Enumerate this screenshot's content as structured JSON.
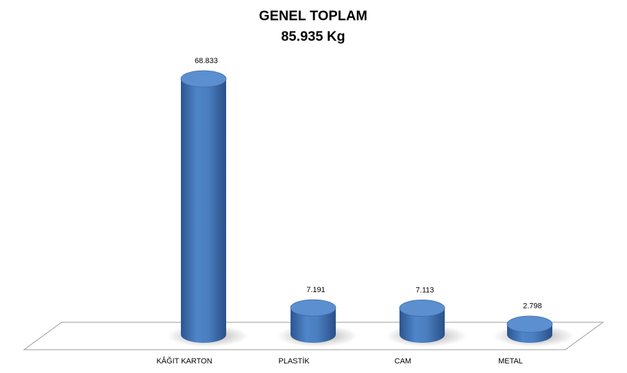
{
  "chart_data": {
    "type": "cylinder-bar",
    "title": "GENEL TOPLAM",
    "subtitle": "85.935 Kg",
    "categories": [
      "KÂĞIT KARTON",
      "PLASTİK",
      "CAM",
      "METAL"
    ],
    "values": [
      68833,
      7191,
      7113,
      2798
    ],
    "value_labels": [
      "68.833",
      "7.191",
      "7.113",
      "2.798"
    ],
    "color": "#4a7ebf"
  }
}
